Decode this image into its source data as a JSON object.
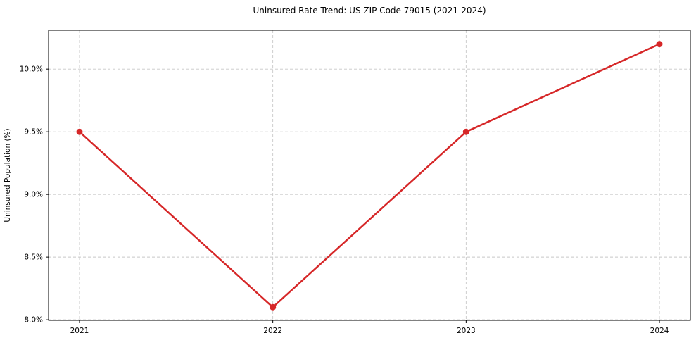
{
  "chart_data": {
    "type": "line",
    "title": "Uninsured Rate Trend: US ZIP Code 79015 (2021-2024)",
    "xlabel": "",
    "ylabel": "Uninsured Population (%)",
    "x": [
      2021,
      2022,
      2023,
      2024
    ],
    "values": [
      9.5,
      8.1,
      9.5,
      10.2
    ],
    "x_tick_labels": [
      "2021",
      "2022",
      "2023",
      "2024"
    ],
    "y_tick_values": [
      8.0,
      8.5,
      9.0,
      9.5,
      10.0
    ],
    "y_tick_labels": [
      "8.0%",
      "8.5%",
      "9.0%",
      "9.5%",
      "10.0%"
    ],
    "xlim": [
      2020.84,
      2024.16
    ],
    "ylim": [
      7.995,
      10.31
    ],
    "grid": true,
    "grid_style": "dashed",
    "legend": false,
    "marker": "circle",
    "colors": {
      "line": "#d62728",
      "marker": "#d62728",
      "grid": "#c8c8c8",
      "axis": "#000000",
      "text": "#000000",
      "background": "#ffffff"
    }
  }
}
